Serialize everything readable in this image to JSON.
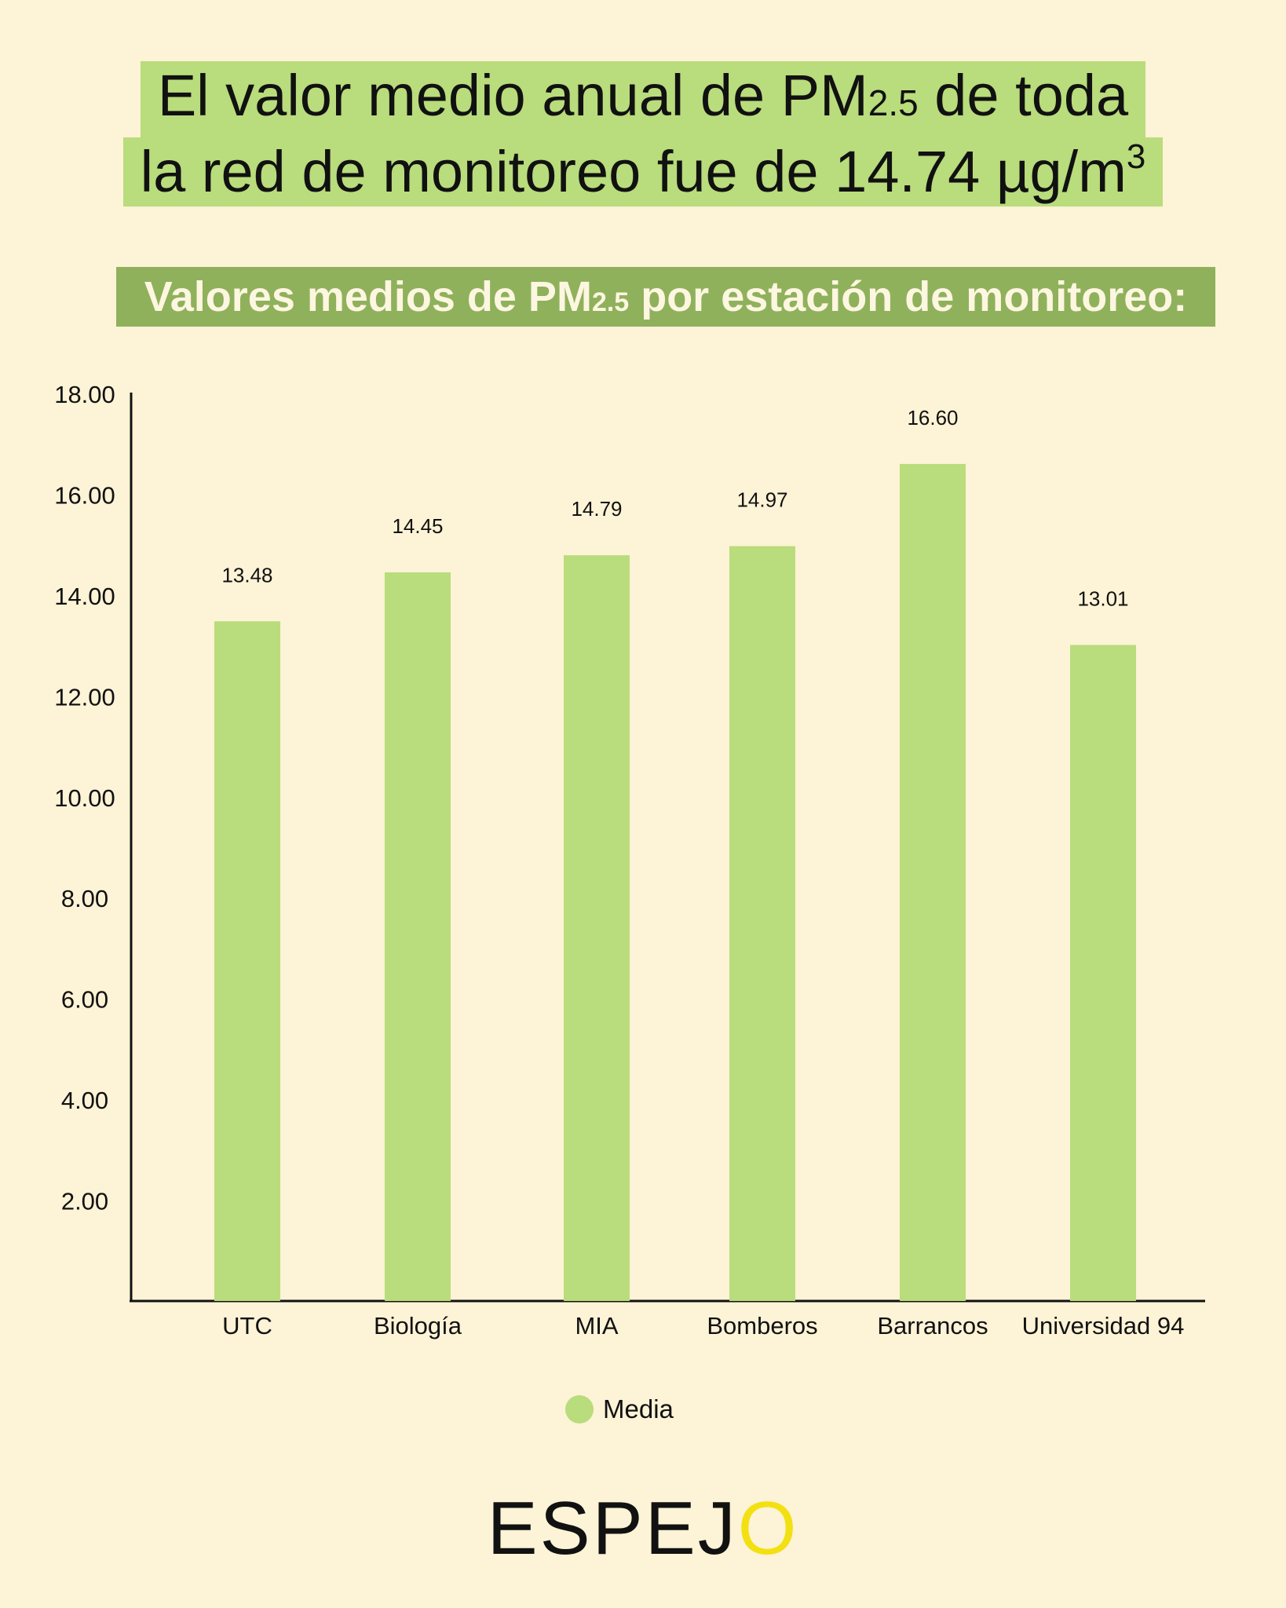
{
  "headline": {
    "line1_pre": "El valor medio anual de PM",
    "line1_sub": "2.5",
    "line1_post": " de toda",
    "line2_pre": "la red de monitoreo fue de 14.74 µg/m",
    "line2_sup": "3"
  },
  "subtitle": {
    "pre": "Valores medios de PM",
    "sub": "2.5",
    "post": " por estación de monitoreo:"
  },
  "legend": {
    "label": "Media"
  },
  "logo": {
    "main": "ESPEJ",
    "accent": "O"
  },
  "colors": {
    "background": "#fdf3d6",
    "bar": "#b9dc7c",
    "subtitle_band": "#8fb15c",
    "logo_accent": "#f2e012"
  },
  "chart_data": {
    "type": "bar",
    "categories": [
      "UTC",
      "Biología",
      "MIA",
      "Bomberos",
      "Barrancos",
      "Universidad 94"
    ],
    "series": [
      {
        "name": "Media",
        "values": [
          13.48,
          14.45,
          14.79,
          14.97,
          16.6,
          13.01
        ]
      }
    ],
    "data_labels": [
      "13.48",
      "14.45",
      "14.79",
      "14.97",
      "16.60",
      "13.01"
    ],
    "yticks": [
      "2.00",
      "4.00",
      "6.00",
      "8.00",
      "10.00",
      "12.00",
      "14.00",
      "16.00",
      "18.00"
    ],
    "ylim": [
      0,
      18
    ],
    "grid": false,
    "legend_position": "bottom-center"
  }
}
